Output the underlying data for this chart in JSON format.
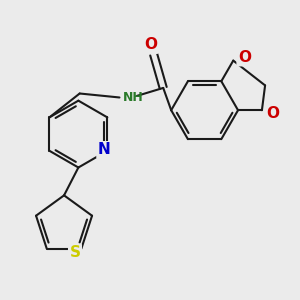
{
  "bg_color": "#ebebeb",
  "bond_color": "#1a1a1a",
  "bond_width": 1.5,
  "dbo": 0.045,
  "atom_colors": {
    "N": "#0000cc",
    "O": "#cc0000",
    "S": "#cccc00"
  },
  "font_size": 10
}
